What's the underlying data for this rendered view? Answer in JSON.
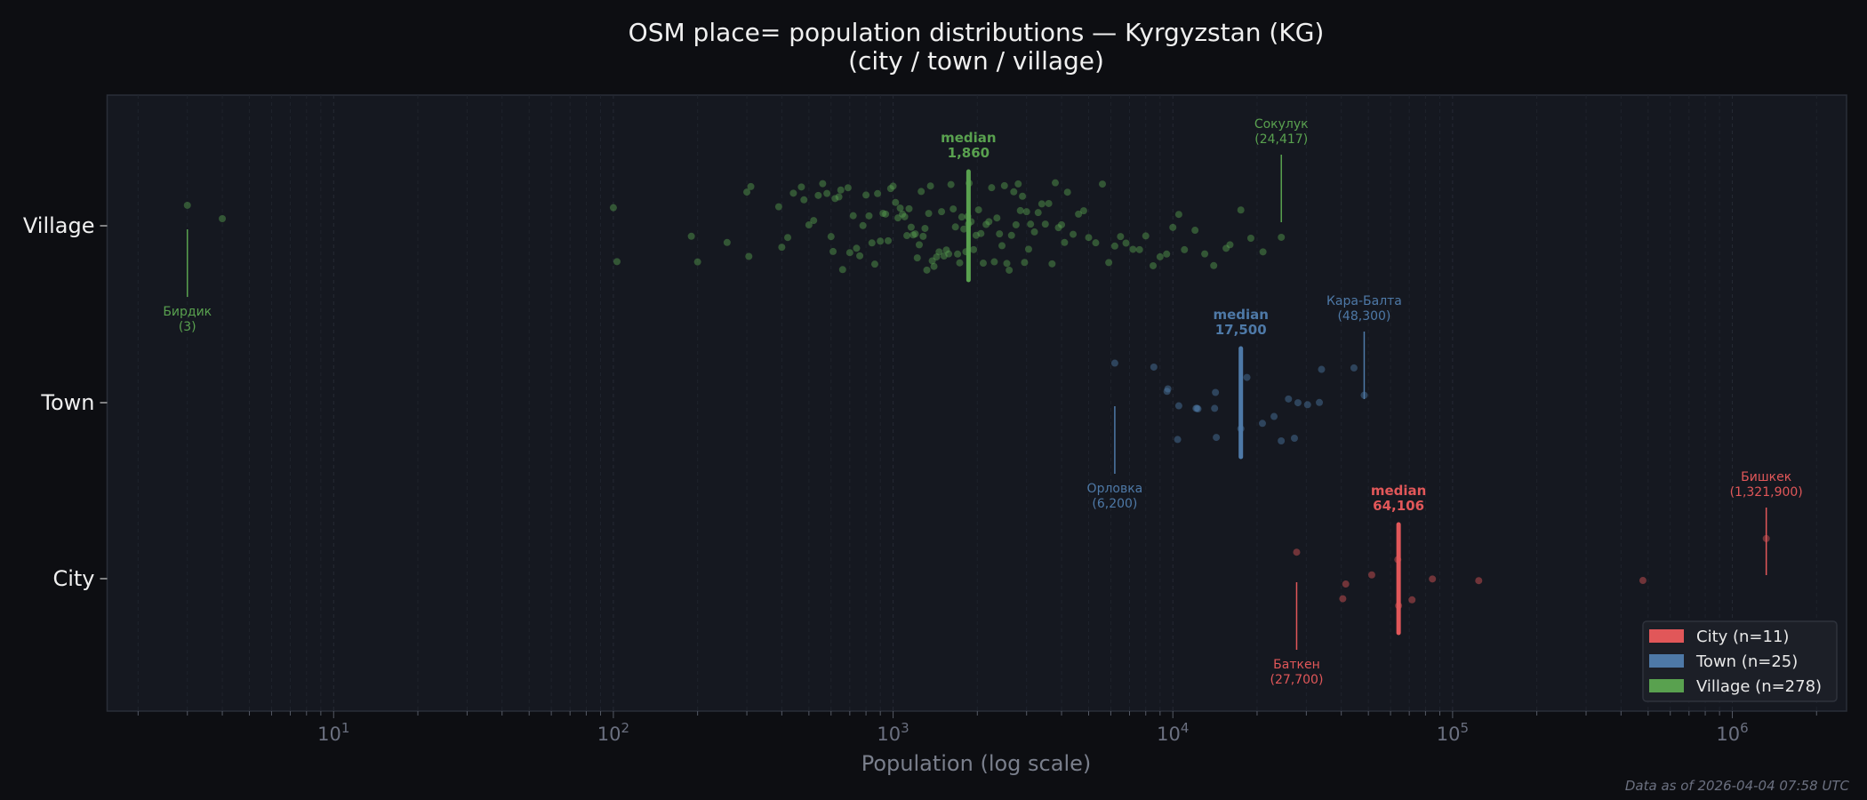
{
  "chart_data": {
    "type": "scatter",
    "title": "OSM place= population distributions — Kyrgyzstan (KG)",
    "subtitle": "(city / town / village)",
    "xlabel": "Population (log scale)",
    "xscale": "log",
    "xlim": [
      1.55,
      2560000
    ],
    "x_ticks": [
      {
        "base": "10",
        "exp": "1",
        "value": 10
      },
      {
        "base": "10",
        "exp": "2",
        "value": 100
      },
      {
        "base": "10",
        "exp": "3",
        "value": 1000
      },
      {
        "base": "10",
        "exp": "4",
        "value": 10000
      },
      {
        "base": "10",
        "exp": "5",
        "value": 100000
      },
      {
        "base": "10",
        "exp": "6",
        "value": 1000000
      }
    ],
    "categories": [
      "City",
      "Town",
      "Village"
    ],
    "grid": "vertical",
    "legend_placement": "bottom-right",
    "footer": "Data as of 2026-04-04 07:58 UTC",
    "median_word": "median",
    "series": [
      {
        "name": "City",
        "legend": "City  (n=11)",
        "color": "#e15759",
        "median": 64106,
        "median_label": "64,106",
        "values": [
          27700,
          40500,
          41500,
          51400,
          63700,
          64106,
          71600,
          84700,
          124000,
          479000,
          1321900
        ],
        "annotations": [
          {
            "name": "Бишкек",
            "value_label": "(1,321,900)",
            "value": 1321900,
            "side": "above"
          },
          {
            "name": "Баткен",
            "value_label": "(27,700)",
            "value": 27700,
            "side": "below"
          }
        ]
      },
      {
        "name": "Town",
        "legend": "Town  (n=25)",
        "color": "#4e79a7",
        "median": 17500,
        "median_label": "17,500",
        "values": [
          6200,
          8550,
          9530,
          9600,
          10400,
          10500,
          12100,
          12200,
          12300,
          14100,
          14200,
          14300,
          17500,
          18400,
          20900,
          23000,
          24400,
          25900,
          27200,
          28000,
          30300,
          33400,
          34000,
          44400,
          48300
        ],
        "annotations": [
          {
            "name": "Кара-Балта",
            "value_label": "(48,300)",
            "value": 48300,
            "side": "above"
          },
          {
            "name": "Орловка",
            "value_label": "(6,200)",
            "value": 6200,
            "side": "below"
          }
        ]
      },
      {
        "name": "Village",
        "legend": "Village  (n=278)",
        "color": "#59a14f",
        "median": 1860,
        "median_label": "1,860",
        "values": [
          3,
          4,
          100,
          103,
          190,
          200,
          255,
          300,
          305,
          310,
          390,
          400,
          420,
          440,
          470,
          480,
          500,
          520,
          540,
          560,
          580,
          600,
          610,
          620,
          640,
          650,
          660,
          690,
          700,
          720,
          740,
          760,
          780,
          800,
          820,
          840,
          860,
          880,
          900,
          920,
          940,
          960,
          980,
          1000,
          1020,
          1040,
          1060,
          1080,
          1100,
          1120,
          1140,
          1160,
          1180,
          1200,
          1220,
          1240,
          1260,
          1280,
          1300,
          1320,
          1340,
          1360,
          1380,
          1400,
          1430,
          1460,
          1490,
          1520,
          1550,
          1580,
          1610,
          1640,
          1670,
          1700,
          1730,
          1760,
          1790,
          1820,
          1850,
          1860,
          1870,
          1900,
          1940,
          1980,
          2020,
          2060,
          2100,
          2150,
          2200,
          2250,
          2300,
          2350,
          2400,
          2450,
          2500,
          2550,
          2600,
          2650,
          2700,
          2750,
          2800,
          2850,
          2900,
          2950,
          3000,
          3050,
          3100,
          3200,
          3300,
          3400,
          3500,
          3600,
          3700,
          3800,
          3900,
          4000,
          4100,
          4200,
          4400,
          4600,
          4800,
          5000,
          5300,
          5600,
          5900,
          6200,
          6500,
          6800,
          7200,
          7600,
          8000,
          8500,
          9000,
          9500,
          10000,
          10500,
          11000,
          12000,
          13000,
          14000,
          15500,
          16000,
          17500,
          19000,
          21000,
          24417
        ],
        "annotations": [
          {
            "name": "Сокулук",
            "value_label": "(24,417)",
            "value": 24417,
            "side": "above"
          },
          {
            "name": "Бирдик",
            "value_label": "(3)",
            "value": 3,
            "side": "below"
          }
        ]
      }
    ]
  }
}
